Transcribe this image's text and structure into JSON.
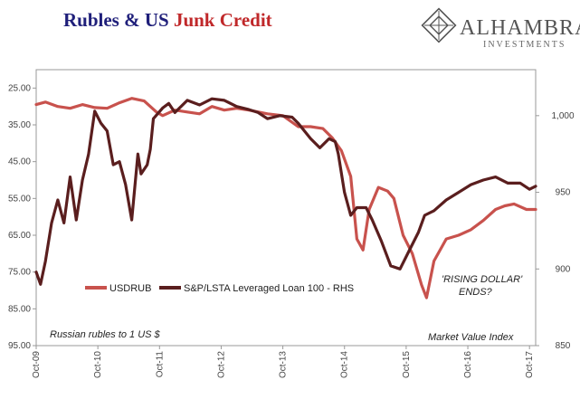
{
  "chart_data": {
    "type": "line",
    "title_part1": "Rubles & US ",
    "title_part2": "Junk Credit",
    "title_colors": {
      "part1": "#1f1f7a",
      "part2": "#c0282a"
    },
    "logo": {
      "name": "ALHAMBRA",
      "sub": "INVESTMENTS"
    },
    "x_ticks": [
      "Oct-09",
      "Oct-10",
      "Oct-11",
      "Oct-12",
      "Oct-13",
      "Oct-14",
      "Oct-15",
      "Oct-16",
      "Oct-17"
    ],
    "x_range": [
      2009.75,
      2017.85
    ],
    "left_axis": {
      "ticks": [
        "25.00",
        "35.00",
        "45.00",
        "55.00",
        "65.00",
        "75.00",
        "85.00",
        "95.00"
      ],
      "range": [
        20,
        95
      ],
      "inverted": true,
      "note": "Russian rubles to 1 US $"
    },
    "right_axis": {
      "ticks": [
        "850",
        "900",
        "950",
        "1,000"
      ],
      "range": [
        850,
        1030
      ],
      "note": "Market Value Index"
    },
    "annotation": [
      "'RISING DOLLAR'",
      "ENDS?"
    ],
    "series": [
      {
        "name": "USDRUB",
        "axis": "left",
        "color": "#c8524d",
        "x": [
          2009.75,
          2009.9,
          2010.1,
          2010.3,
          2010.5,
          2010.7,
          2010.9,
          2011.1,
          2011.3,
          2011.5,
          2011.7,
          2011.8,
          2012.0,
          2012.2,
          2012.4,
          2012.6,
          2012.8,
          2013.0,
          2013.2,
          2013.5,
          2013.75,
          2014.0,
          2014.2,
          2014.4,
          2014.55,
          2014.7,
          2014.85,
          2014.95,
          2015.05,
          2015.15,
          2015.3,
          2015.45,
          2015.55,
          2015.7,
          2015.85,
          2016.0,
          2016.08,
          2016.2,
          2016.4,
          2016.6,
          2016.8,
          2017.0,
          2017.2,
          2017.35,
          2017.5,
          2017.7,
          2017.85
        ],
        "values": [
          29.5,
          28.8,
          30,
          30.5,
          29.5,
          30.3,
          30.5,
          29,
          27.8,
          28.5,
          31.5,
          32.5,
          31,
          31.5,
          32,
          30,
          31,
          30.5,
          31,
          32,
          32.5,
          35.5,
          35.5,
          36,
          38.5,
          42,
          49,
          66,
          69,
          58,
          52,
          53,
          55,
          65,
          70,
          78.5,
          82,
          72,
          66,
          65,
          63.5,
          61,
          58,
          57,
          56.5,
          58,
          58
        ],
        "name_color": "#c8524d"
      },
      {
        "name": "S&P/LSTA Leveraged Loan 100 - RHS",
        "axis": "right",
        "color": "#5a1e1e",
        "x": [
          2009.75,
          2009.82,
          2009.9,
          2010.0,
          2010.1,
          2010.2,
          2010.3,
          2010.4,
          2010.5,
          2010.6,
          2010.7,
          2010.8,
          2010.9,
          2011.0,
          2011.1,
          2011.2,
          2011.3,
          2011.4,
          2011.45,
          2011.55,
          2011.6,
          2011.65,
          2011.8,
          2011.9,
          2012.0,
          2012.2,
          2012.4,
          2012.6,
          2012.8,
          2013.0,
          2013.2,
          2013.35,
          2013.5,
          2013.7,
          2013.9,
          2014.0,
          2014.2,
          2014.35,
          2014.5,
          2014.6,
          2014.65,
          2014.75,
          2014.85,
          2014.95,
          2015.1,
          2015.2,
          2015.35,
          2015.5,
          2015.65,
          2015.8,
          2015.95,
          2016.05,
          2016.2,
          2016.4,
          2016.6,
          2016.8,
          2017.0,
          2017.2,
          2017.4,
          2017.6,
          2017.75,
          2017.85
        ],
        "values": [
          898,
          890,
          905,
          930,
          945,
          930,
          960,
          932,
          958,
          975,
          1003,
          995,
          990,
          968,
          970,
          955,
          932,
          975,
          962,
          968,
          978,
          998,
          1005,
          1008,
          1002,
          1010,
          1007,
          1011,
          1010,
          1006,
          1004,
          1002,
          998,
          1000,
          999,
          995,
          985,
          979,
          985,
          983,
          975,
          950,
          935,
          940,
          940,
          932,
          918,
          902,
          900,
          912,
          924,
          935,
          938,
          945,
          950,
          955,
          958,
          960,
          956,
          956,
          952,
          954
        ],
        "name_color": "#5a1e1e"
      }
    ]
  }
}
